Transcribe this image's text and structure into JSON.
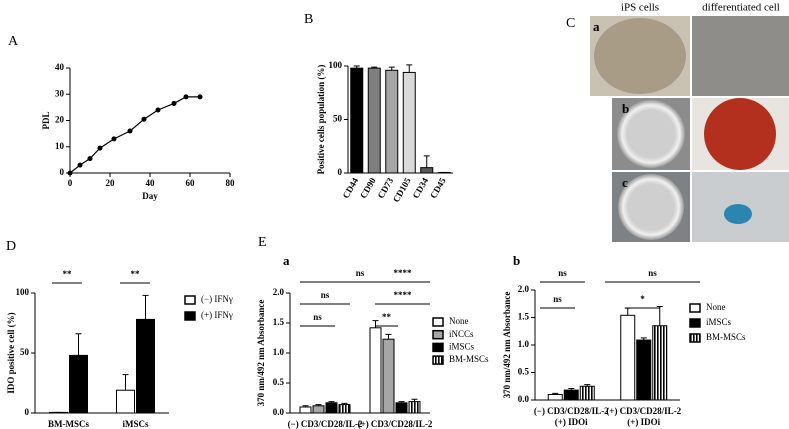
{
  "chart_data": [
    {
      "type": "line",
      "panel": "A",
      "x": [
        0,
        5,
        10,
        15,
        22,
        30,
        37,
        44,
        52,
        58,
        65
      ],
      "values": [
        0,
        3,
        5.5,
        9.5,
        13,
        16,
        20.5,
        24,
        26.5,
        29,
        29
      ],
      "xlim": [
        0,
        80
      ],
      "xticks": [
        0,
        20,
        40,
        60,
        80
      ],
      "ylim": [
        0,
        40
      ],
      "yticks": [
        0,
        10,
        20,
        30,
        40
      ],
      "xlabel": "Day",
      "ylabel": "PDL",
      "color": "#000000"
    },
    {
      "type": "bar",
      "panel": "B",
      "categories": [
        "CD44",
        "CD90",
        "CD73",
        "CD105",
        "CD34",
        "CD45"
      ],
      "values": [
        98,
        98,
        96,
        94,
        5,
        0.5
      ],
      "errors": [
        2,
        1,
        3,
        7,
        11,
        0
      ],
      "colors": [
        "#000000",
        "#7f7f7f",
        "#a6a6a6",
        "#d9d9d9",
        "#595959",
        "#595959"
      ],
      "ylim": [
        0,
        100
      ],
      "yticks": [
        0,
        50,
        100
      ],
      "ylabel": "Positive cells population (%)"
    },
    {
      "type": "bar",
      "panel": "D",
      "categories": [
        "BM-MSCs",
        "iMSCs"
      ],
      "series": [
        {
          "name": "(−) IFNγ",
          "color": "#ffffff",
          "values": [
            0.5,
            19
          ],
          "errors": [
            0,
            13
          ]
        },
        {
          "name": "(+) IFNγ",
          "color": "#000000",
          "values": [
            48,
            78
          ],
          "errors": [
            18,
            20
          ]
        }
      ],
      "ylim": [
        0,
        100
      ],
      "yticks": [
        0,
        50,
        100
      ],
      "ylabel": "IDO positive cell (%)",
      "annotations": [
        "**",
        "**"
      ]
    },
    {
      "type": "bar",
      "panel": "E",
      "subpanel": "a",
      "categories": [
        [
          "(−) CD3/CD28/IL-2"
        ],
        [
          "(+) CD3/CD28/IL-2"
        ]
      ],
      "series": [
        {
          "name": "None",
          "color": "#ffffff",
          "values": [
            0.1,
            1.42
          ],
          "errors": [
            0.02,
            0.12
          ]
        },
        {
          "name": "iNCCs",
          "color": "#a6a6a6",
          "values": [
            0.12,
            1.23
          ],
          "errors": [
            0.02,
            0.08
          ]
        },
        {
          "name": "iMSCs",
          "color": "#000000",
          "values": [
            0.17,
            0.17
          ],
          "errors": [
            0.02,
            0.02
          ]
        },
        {
          "name": "BM-MSCs",
          "color": "#000000",
          "hatch": true,
          "values": [
            0.14,
            0.19
          ],
          "errors": [
            0.02,
            0.04
          ]
        }
      ],
      "ylim": [
        0,
        2
      ],
      "yticks": [
        {
          "value": 0,
          "label": "0.0"
        },
        0.5,
        {
          "value": 1,
          "label": "1.0"
        },
        1.5,
        {
          "value": 2,
          "label": "2.0"
        }
      ],
      "ylabel": "370 nm/492 nm Absorbance",
      "annotations": [
        "ns",
        "ns",
        "ns",
        "****",
        "****",
        "**"
      ]
    },
    {
      "type": "bar",
      "subpanel": "b",
      "categories": [
        [
          "(−) CD3/CD28/IL-2",
          "(+) IDOi"
        ],
        [
          "(+) CD3/CD28/IL-2",
          "(+) IDOi"
        ]
      ],
      "series": [
        {
          "name": "None",
          "color": "#ffffff",
          "values": [
            0.1,
            1.54
          ],
          "errors": [
            0.02,
            0.13
          ]
        },
        {
          "name": "iMSCs",
          "color": "#000000",
          "values": [
            0.18,
            1.09
          ],
          "errors": [
            0.03,
            0.04
          ]
        },
        {
          "name": "BM-MSCs",
          "color": "#000000",
          "hatch": true,
          "values": [
            0.25,
            1.35
          ],
          "errors": [
            0.03,
            0.35
          ]
        }
      ],
      "ylim": [
        0,
        2
      ],
      "yticks": [
        {
          "value": 0,
          "label": "0.0"
        },
        0.5,
        {
          "value": 1,
          "label": "1.0"
        },
        1.5,
        {
          "value": 2,
          "label": "2.0"
        }
      ],
      "ylabel": "370 nm/492 nm Absorbance",
      "annotations": [
        "ns",
        "ns",
        "ns",
        "*"
      ]
    }
  ],
  "images": {
    "panel": "C",
    "columns": [
      "iPS cells",
      "differentiated cell"
    ],
    "rows": [
      "a",
      "b",
      "c"
    ]
  }
}
